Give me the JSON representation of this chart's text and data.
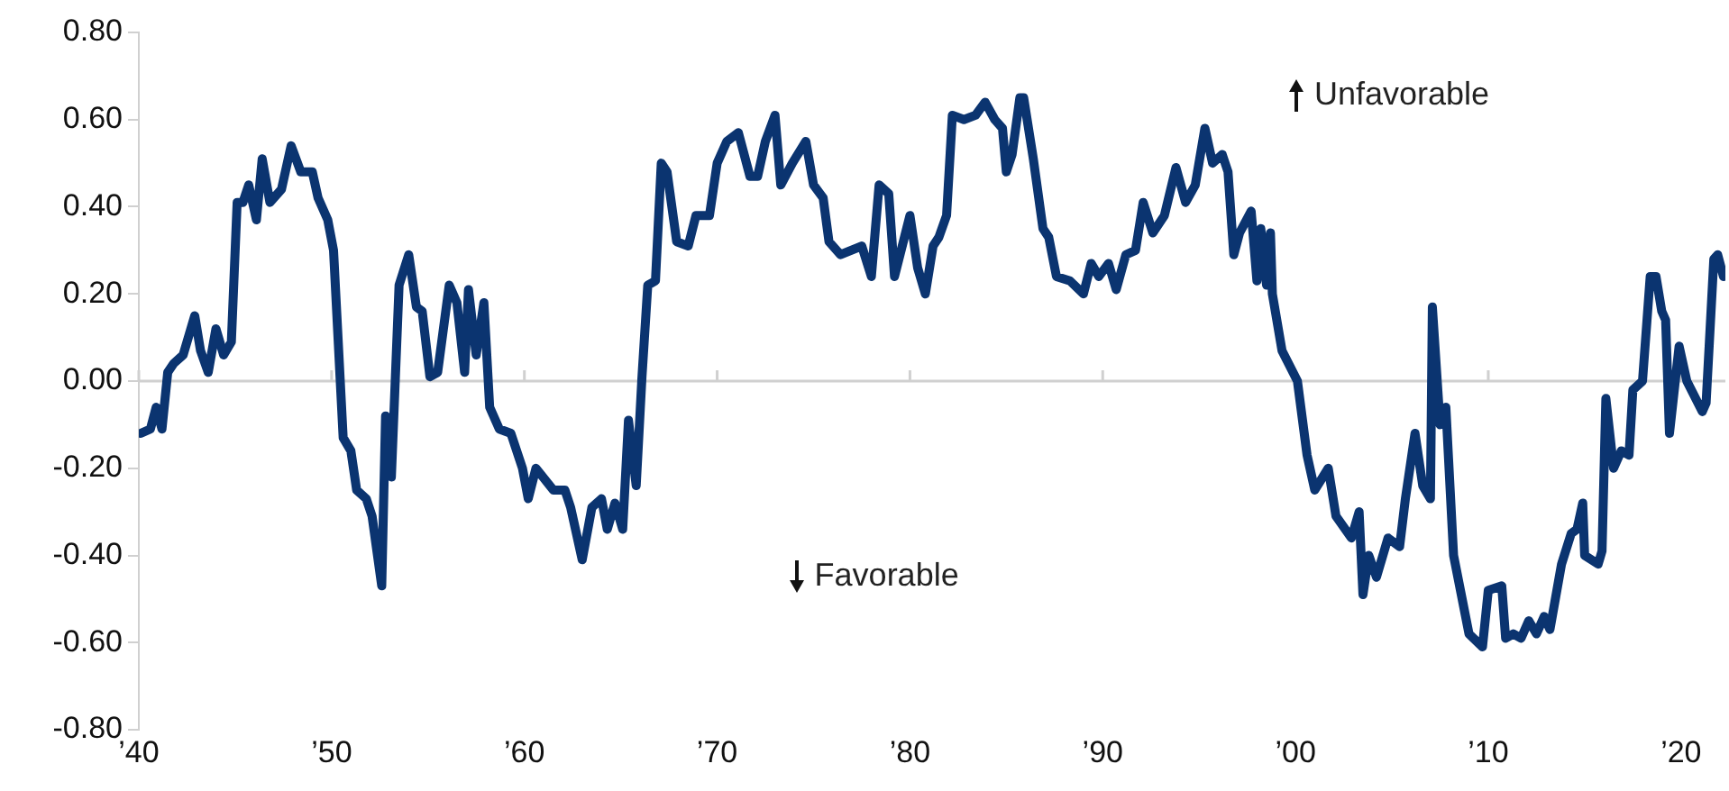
{
  "chart_data": {
    "type": "line",
    "x": [
      1940.1,
      1940.6,
      1940.9,
      1941.2,
      1941.5,
      1941.8,
      1942.3,
      1942.9,
      1943.2,
      1943.6,
      1944.0,
      1944.4,
      1944.8,
      1945.1,
      1945.4,
      1945.7,
      1946.1,
      1946.4,
      1946.8,
      1947.4,
      1947.9,
      1948.4,
      1949.0,
      1949.3,
      1949.8,
      1950.1,
      1950.6,
      1951.0,
      1951.3,
      1951.8,
      1952.1,
      1952.6,
      1952.8,
      1953.1,
      1953.5,
      1954.0,
      1954.4,
      1954.7,
      1955.1,
      1955.5,
      1956.1,
      1956.5,
      1956.9,
      1957.1,
      1957.5,
      1957.9,
      1958.2,
      1958.7,
      1959.3,
      1959.9,
      1960.2,
      1960.6,
      1961.5,
      1962.1,
      1962.4,
      1963.0,
      1963.5,
      1964.0,
      1964.3,
      1964.7,
      1965.1,
      1965.4,
      1965.8,
      1966.1,
      1966.4,
      1966.8,
      1967.1,
      1967.4,
      1967.9,
      1968.5,
      1968.9,
      1969.6,
      1970.0,
      1970.5,
      1971.1,
      1971.7,
      1972.1,
      1972.5,
      1973.0,
      1973.3,
      1973.9,
      1974.6,
      1975.0,
      1975.5,
      1975.8,
      1976.4,
      1977.5,
      1978.0,
      1978.4,
      1978.9,
      1979.2,
      1980.0,
      1980.4,
      1980.8,
      1981.2,
      1981.5,
      1981.9,
      1982.2,
      1982.8,
      1983.4,
      1983.9,
      1984.4,
      1984.8,
      1985.0,
      1985.3,
      1985.7,
      1985.9,
      1986.4,
      1986.9,
      1987.2,
      1987.6,
      1988.3,
      1989.0,
      1989.4,
      1989.8,
      1990.3,
      1990.7,
      1991.2,
      1991.7,
      1992.1,
      1992.6,
      1993.2,
      1993.8,
      1994.3,
      1994.8,
      1995.3,
      1995.7,
      1996.2,
      1996.5,
      1996.8,
      1997.1,
      1997.7,
      1998.0,
      1998.2,
      1998.5,
      1998.7,
      1998.8,
      1999.3,
      2000.1,
      2000.6,
      2001.0,
      2001.7,
      2002.1,
      2002.9,
      2003.3,
      2003.5,
      2003.8,
      2004.2,
      2004.8,
      2005.4,
      2005.7,
      2006.2,
      2006.6,
      2007.0,
      2007.1,
      2007.5,
      2007.8,
      2008.2,
      2009.0,
      2009.7,
      2010.0,
      2010.7,
      2010.9,
      2011.3,
      2011.7,
      2012.1,
      2012.5,
      2012.9,
      2013.2,
      2013.8,
      2014.3,
      2014.6,
      2014.9,
      2015.0,
      2015.7,
      2015.9,
      2016.1,
      2016.5,
      2016.9,
      2017.3,
      2017.5,
      2018.0,
      2018.4,
      2018.7,
      2019.0,
      2019.2,
      2019.4,
      2019.9,
      2020.3,
      2021.1,
      2021.3,
      2021.7,
      2021.9,
      2022.2
    ],
    "series": [
      {
        "color": "#0b3470",
        "values": [
          -0.12,
          -0.11,
          -0.06,
          -0.11,
          0.02,
          0.04,
          0.06,
          0.15,
          0.07,
          0.02,
          0.12,
          0.06,
          0.09,
          0.41,
          0.41,
          0.45,
          0.37,
          0.51,
          0.41,
          0.44,
          0.54,
          0.48,
          0.48,
          0.42,
          0.37,
          0.3,
          -0.13,
          -0.16,
          -0.25,
          -0.27,
          -0.31,
          -0.47,
          -0.08,
          -0.22,
          0.22,
          0.29,
          0.17,
          0.16,
          0.01,
          0.02,
          0.22,
          0.18,
          0.02,
          0.21,
          0.06,
          0.18,
          -0.06,
          -0.11,
          -0.12,
          -0.2,
          -0.27,
          -0.2,
          -0.25,
          -0.25,
          -0.29,
          -0.41,
          -0.29,
          -0.27,
          -0.34,
          -0.28,
          -0.34,
          -0.09,
          -0.24,
          0.01,
          0.22,
          0.23,
          0.5,
          0.48,
          0.32,
          0.31,
          0.38,
          0.38,
          0.5,
          0.55,
          0.57,
          0.47,
          0.47,
          0.55,
          0.61,
          0.45,
          0.5,
          0.55,
          0.45,
          0.42,
          0.32,
          0.29,
          0.31,
          0.24,
          0.45,
          0.43,
          0.24,
          0.38,
          0.26,
          0.2,
          0.31,
          0.33,
          0.38,
          0.61,
          0.6,
          0.61,
          0.64,
          0.6,
          0.58,
          0.48,
          0.52,
          0.65,
          0.65,
          0.51,
          0.35,
          0.33,
          0.24,
          0.23,
          0.2,
          0.27,
          0.24,
          0.27,
          0.21,
          0.29,
          0.3,
          0.41,
          0.34,
          0.38,
          0.49,
          0.41,
          0.45,
          0.58,
          0.5,
          0.52,
          0.48,
          0.29,
          0.34,
          0.39,
          0.23,
          0.35,
          0.22,
          0.34,
          0.2,
          0.07,
          0.0,
          -0.17,
          -0.25,
          -0.2,
          -0.31,
          -0.36,
          -0.3,
          -0.49,
          -0.4,
          -0.45,
          -0.36,
          -0.38,
          -0.27,
          -0.12,
          -0.24,
          -0.27,
          0.17,
          -0.1,
          -0.06,
          -0.4,
          -0.58,
          -0.61,
          -0.48,
          -0.47,
          -0.59,
          -0.58,
          -0.59,
          -0.55,
          -0.58,
          -0.54,
          -0.57,
          -0.42,
          -0.35,
          -0.34,
          -0.28,
          -0.4,
          -0.42,
          -0.39,
          -0.04,
          -0.2,
          -0.16,
          -0.17,
          -0.02,
          0.0,
          0.24,
          0.24,
          0.16,
          0.14,
          -0.12,
          0.08,
          0.0,
          -0.07,
          -0.05,
          0.28,
          0.29,
          0.24
        ]
      }
    ],
    "xlim": [
      1940,
      2022.3
    ],
    "xticks": [
      {
        "value": 1940,
        "label": "’40"
      },
      {
        "value": 1950,
        "label": "’50"
      },
      {
        "value": 1960,
        "label": "’60"
      },
      {
        "value": 1970,
        "label": "’70"
      },
      {
        "value": 1980,
        "label": "’80"
      },
      {
        "value": 1990,
        "label": "’90"
      },
      {
        "value": 2000,
        "label": "’00"
      },
      {
        "value": 2010,
        "label": "’10"
      },
      {
        "value": 2020,
        "label": "’20"
      }
    ],
    "ylim": [
      -0.8,
      0.8
    ],
    "yticks": [
      {
        "value": -0.8,
        "label": "-0.80"
      },
      {
        "value": -0.6,
        "label": "-0.60"
      },
      {
        "value": -0.4,
        "label": "-0.40"
      },
      {
        "value": -0.2,
        "label": "-0.20"
      },
      {
        "value": 0,
        "label": "0.00"
      },
      {
        "value": 0.2,
        "label": "0.20"
      },
      {
        "value": 0.4,
        "label": "0.40"
      },
      {
        "value": 0.6,
        "label": "0.60"
      },
      {
        "value": 0.8,
        "label": "0.80"
      }
    ],
    "ref_lines": [
      {
        "axis": "y",
        "value": 0,
        "color": "#d0d0d0"
      }
    ],
    "annotations": [
      "Unfavorable",
      "Favorable"
    ],
    "grid": false,
    "legend": false,
    "marker": "none",
    "line_style": "solid"
  }
}
